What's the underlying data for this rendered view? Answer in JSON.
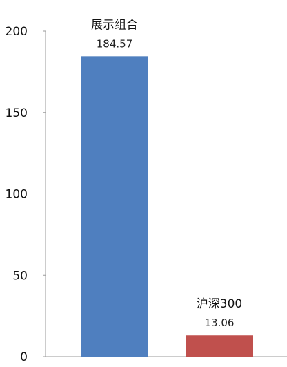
{
  "chart_data": {
    "type": "bar",
    "categories": [
      "展示组合",
      "沪深300"
    ],
    "values": [
      184.57,
      13.06
    ],
    "value_labels": [
      "184.57",
      "13.06"
    ],
    "colors": [
      "#4f7fbf",
      "#c0504d"
    ],
    "ylim": [
      0,
      200
    ],
    "yticks": [
      "0",
      "50",
      "100",
      "150",
      "200"
    ],
    "grid": false,
    "title": "",
    "xlabel": "",
    "ylabel": ""
  }
}
